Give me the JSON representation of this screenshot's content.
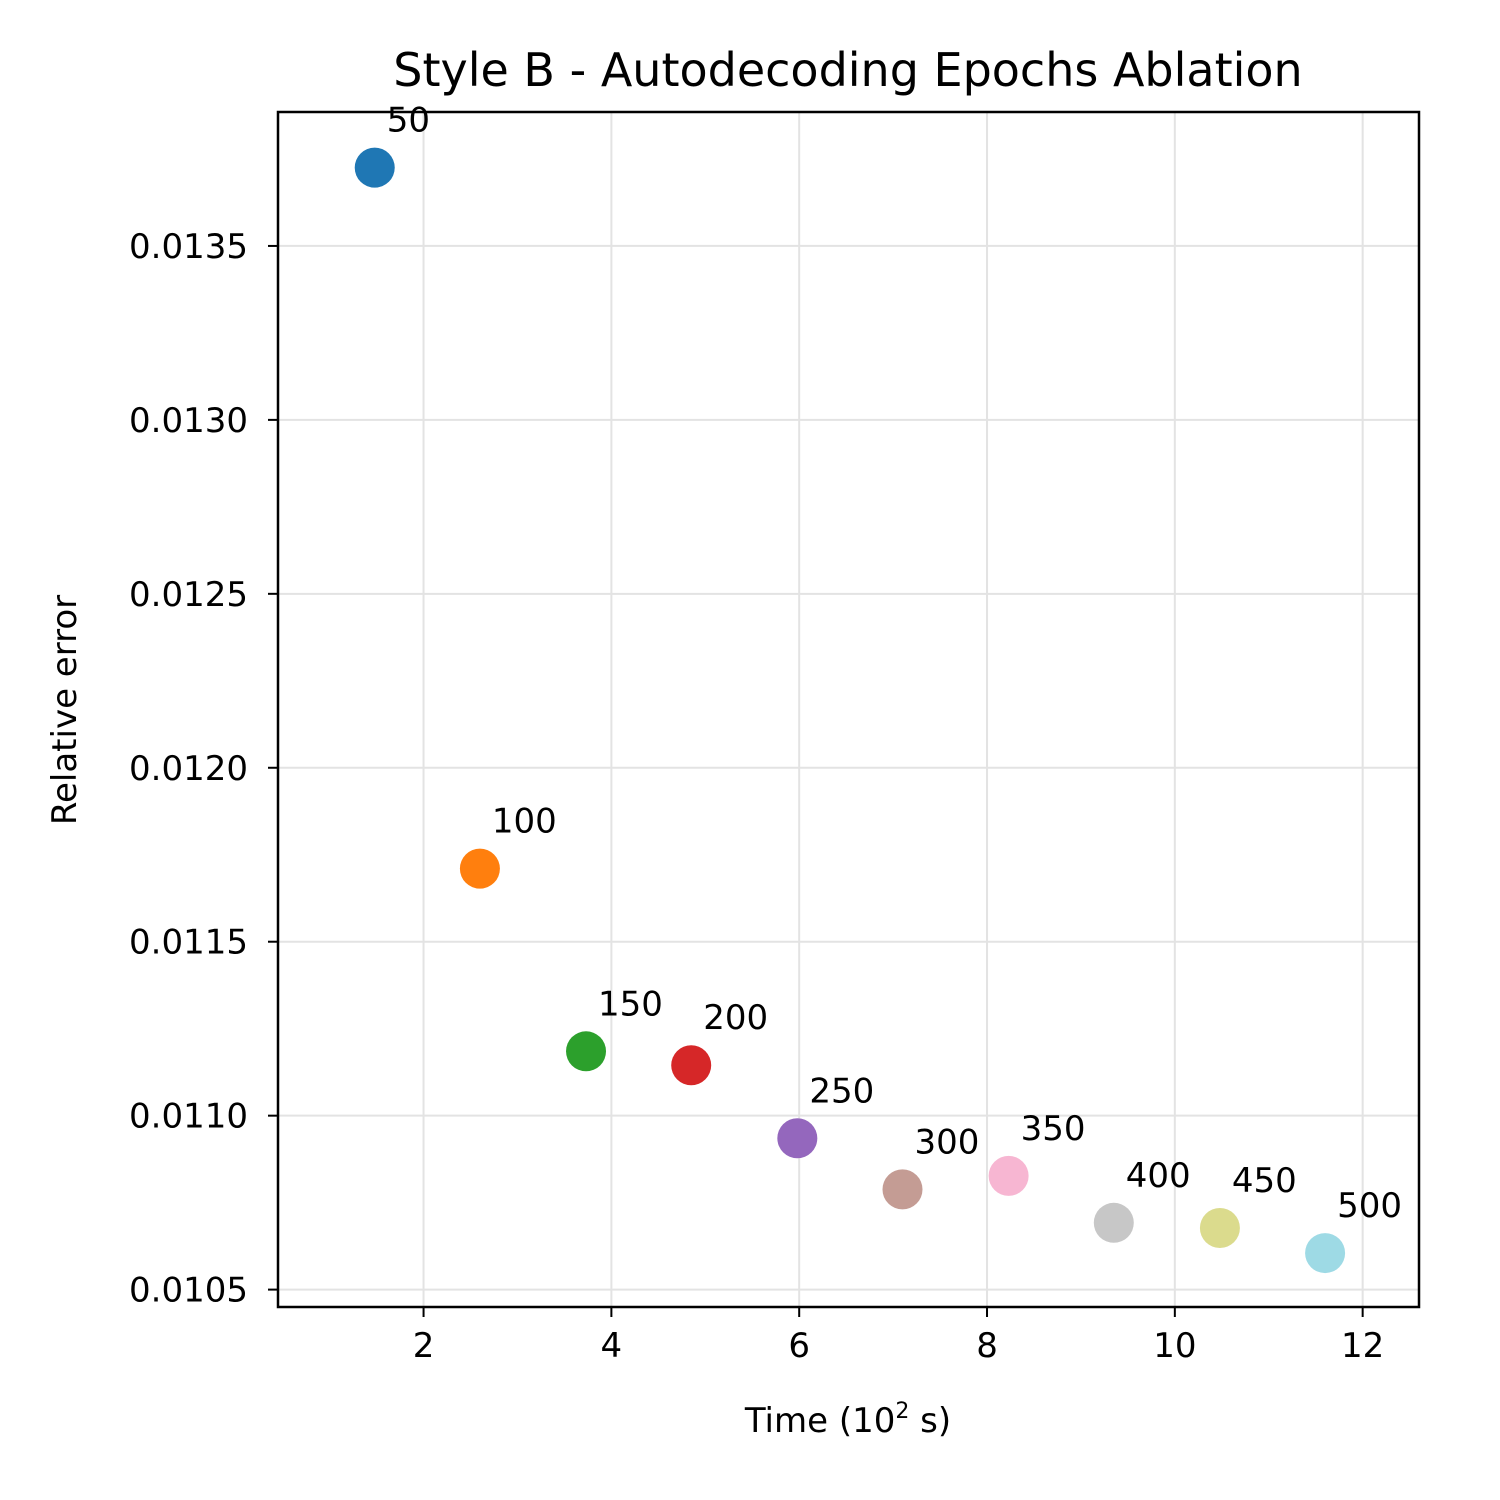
{
  "chart_data": {
    "type": "scatter",
    "title": "Style B - Autodecoding Epochs Ablation",
    "xlabel": "Time (10",
    "xlabel_sup": "2",
    "xlabel_end": " s)",
    "ylabel": "Relative error",
    "xlim": [
      0.45,
      12.6
    ],
    "ylim": [
      0.01045,
      0.013885
    ],
    "xticks": [
      2,
      4,
      6,
      8,
      10,
      12
    ],
    "xtick_labels": [
      "2",
      "4",
      "6",
      "8",
      "10",
      "12"
    ],
    "yticks": [
      0.0105,
      0.011,
      0.0115,
      0.012,
      0.0125,
      0.013,
      0.0135
    ],
    "ytick_labels": [
      "0.0105",
      "0.0110",
      "0.0115",
      "0.0120",
      "0.0125",
      "0.0130",
      "0.0135"
    ],
    "grid": true,
    "points": [
      {
        "x": 1.48,
        "y": 0.013725,
        "label": "50",
        "color": "#1f77b4"
      },
      {
        "x": 2.6,
        "y": 0.01171,
        "label": "100",
        "color": "#ff7f0e"
      },
      {
        "x": 3.73,
        "y": 0.011185,
        "label": "150",
        "color": "#2ca02c"
      },
      {
        "x": 4.85,
        "y": 0.011145,
        "label": "200",
        "color": "#d62728"
      },
      {
        "x": 5.98,
        "y": 0.010935,
        "label": "250",
        "color": "#9467bd"
      },
      {
        "x": 7.1,
        "y": 0.010788,
        "label": "300",
        "color": "#c49c94"
      },
      {
        "x": 8.23,
        "y": 0.010827,
        "label": "350",
        "color": "#f7b6d2"
      },
      {
        "x": 9.35,
        "y": 0.010692,
        "label": "400",
        "color": "#c7c7c7"
      },
      {
        "x": 10.48,
        "y": 0.010677,
        "label": "450",
        "color": "#dbdb8d"
      },
      {
        "x": 11.6,
        "y": 0.010605,
        "label": "500",
        "color": "#9edae5"
      }
    ]
  }
}
